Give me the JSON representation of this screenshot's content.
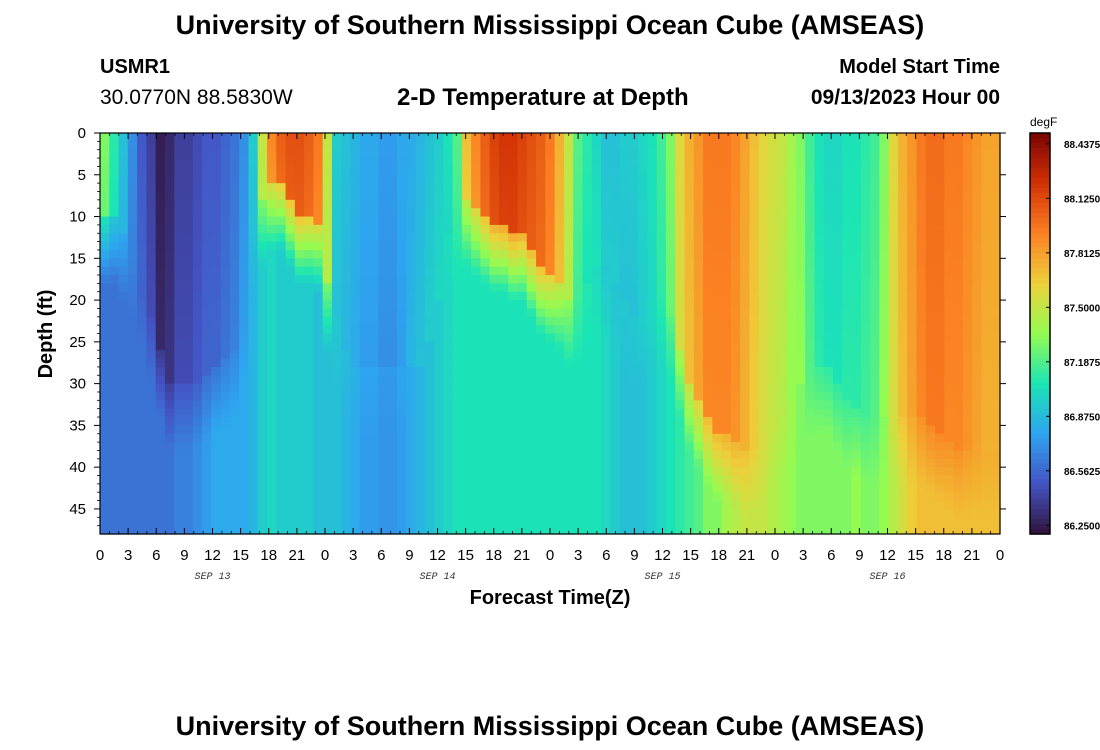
{
  "header": {
    "title": "University of Southern Mississippi Ocean Cube (AMSEAS)",
    "station_id": "USMR1",
    "station_coords": "30.0770N  88.5830W",
    "subtitle": "2-D Temperature at Depth",
    "model_start_label": "Model Start Time",
    "model_start_value": "09/13/2023 Hour 00"
  },
  "footer": {
    "title_repeat": "University of Southern Mississippi Ocean Cube (AMSEAS)"
  },
  "colors": {
    "palette": [
      "#30123b",
      "#4454c4",
      "#2ea4f0",
      "#1be5b5",
      "#95fb51",
      "#edd03a",
      "#fb8022",
      "#d23105",
      "#7a0403"
    ]
  },
  "chart_data": {
    "type": "heatmap",
    "xlabel": "Forecast Time(Z)",
    "ylabel": "Depth (ft)",
    "x_tick_labels": [
      "0",
      "3",
      "6",
      "9",
      "12",
      "15",
      "18",
      "21",
      "0",
      "3",
      "6",
      "9",
      "12",
      "15",
      "18",
      "21",
      "0",
      "3",
      "6",
      "9",
      "12",
      "15",
      "18",
      "21",
      "0",
      "3",
      "6",
      "9",
      "12",
      "15",
      "18",
      "21",
      "0"
    ],
    "x_range_hours": [
      0,
      96
    ],
    "date_labels": [
      {
        "text": "SEP 13",
        "hour": 12
      },
      {
        "text": "SEP 14",
        "hour": 36
      },
      {
        "text": "SEP 15",
        "hour": 60
      },
      {
        "text": "SEP 16",
        "hour": 84
      }
    ],
    "y_ticks": [
      0,
      5,
      10,
      15,
      20,
      25,
      30,
      35,
      40,
      45
    ],
    "y_range_ft": [
      0,
      48
    ],
    "colorbar": {
      "unit": "degF",
      "min": 86.2,
      "max": 88.5,
      "tick_labels": [
        "88.4375",
        "88.1250",
        "87.8125",
        "87.5000",
        "87.1875",
        "86.8750",
        "86.5625",
        "86.2500"
      ],
      "tick_values": [
        88.4375,
        88.125,
        87.8125,
        87.5,
        87.1875,
        86.875,
        86.5625,
        86.25
      ]
    },
    "temperature_degF_by_hour": {
      "hours": [
        0,
        1,
        2,
        3,
        4,
        5,
        6,
        7,
        8,
        9,
        10,
        11,
        12,
        13,
        14,
        15,
        16,
        17,
        18,
        19,
        20,
        21,
        22,
        23,
        24,
        25,
        26,
        27,
        28,
        29,
        30,
        31,
        32,
        33,
        34,
        35,
        36,
        37,
        38,
        39,
        40,
        41,
        42,
        43,
        44,
        45,
        46,
        47,
        48,
        49,
        50,
        51,
        52,
        53,
        54,
        55,
        56,
        57,
        58,
        59,
        60,
        61,
        62,
        63,
        64,
        65,
        66,
        67,
        68,
        69,
        70,
        71,
        72,
        73,
        74,
        75,
        76,
        77,
        78,
        79,
        80,
        81,
        82,
        83,
        84,
        85,
        86,
        87,
        88,
        89,
        90,
        91,
        92,
        93,
        94,
        95,
        96
      ],
      "surface": [
        87.3,
        87.1,
        86.9,
        86.7,
        86.5,
        86.4,
        86.25,
        86.3,
        86.4,
        86.4,
        86.45,
        86.5,
        86.5,
        86.55,
        86.6,
        86.7,
        86.95,
        87.5,
        87.9,
        88.05,
        88.1,
        88.1,
        88.05,
        87.95,
        87.5,
        86.95,
        86.9,
        86.85,
        86.8,
        86.8,
        86.75,
        86.75,
        86.8,
        86.8,
        86.85,
        86.9,
        86.95,
        87.05,
        87.2,
        87.7,
        87.9,
        88.05,
        88.15,
        88.2,
        88.2,
        88.15,
        88.1,
        88.05,
        87.95,
        87.75,
        87.5,
        87.2,
        87.1,
        87.0,
        86.9,
        86.9,
        86.95,
        86.95,
        87.0,
        87.05,
        87.15,
        87.3,
        87.6,
        87.75,
        87.85,
        87.95,
        87.95,
        87.95,
        87.9,
        87.8,
        87.7,
        87.6,
        87.55,
        87.5,
        87.4,
        87.3,
        87.15,
        87.05,
        87.0,
        87.0,
        87.05,
        87.05,
        87.1,
        87.15,
        87.3,
        87.6,
        87.75,
        87.85,
        87.95,
        88.0,
        88.0,
        87.95,
        87.95,
        87.9,
        87.85,
        87.8,
        87.8
      ],
      "bottom": [
        86.6,
        86.6,
        86.6,
        86.6,
        86.6,
        86.6,
        86.6,
        86.6,
        86.65,
        86.65,
        86.7,
        86.75,
        86.8,
        86.8,
        86.8,
        86.8,
        86.85,
        86.95,
        87.0,
        86.95,
        86.95,
        86.95,
        86.95,
        86.9,
        86.9,
        86.9,
        86.85,
        86.8,
        86.75,
        86.75,
        86.72,
        86.72,
        86.75,
        86.8,
        86.85,
        86.9,
        86.95,
        87.0,
        87.05,
        87.05,
        87.05,
        87.05,
        87.05,
        87.05,
        87.05,
        87.05,
        87.05,
        87.05,
        87.05,
        87.05,
        87.05,
        87.05,
        87.05,
        87.05,
        87.0,
        86.95,
        86.9,
        86.9,
        86.9,
        86.95,
        87.0,
        87.05,
        87.1,
        87.15,
        87.2,
        87.3,
        87.3,
        87.4,
        87.45,
        87.5,
        87.5,
        87.5,
        87.45,
        87.4,
        87.35,
        87.3,
        87.3,
        87.3,
        87.3,
        87.3,
        87.3,
        87.35,
        87.3,
        87.3,
        87.35,
        87.45,
        87.55,
        87.65,
        87.7,
        87.7,
        87.7,
        87.7,
        87.7,
        87.7,
        87.7,
        87.7,
        87.7
      ],
      "mixed_layer_depth_ft": [
        10,
        10,
        12,
        14,
        18,
        22,
        26,
        30,
        30,
        30,
        30,
        29,
        28,
        27,
        26,
        22,
        10,
        8,
        6,
        6,
        8,
        10,
        10,
        11,
        18,
        22,
        26,
        28,
        28,
        28,
        28,
        28,
        28,
        28,
        28,
        25,
        20,
        12,
        9,
        8,
        9,
        10,
        11,
        11,
        12,
        12,
        14,
        16,
        17,
        18,
        20,
        20,
        18,
        16,
        16,
        18,
        20,
        22,
        22,
        20,
        20,
        22,
        26,
        30,
        32,
        34,
        36,
        36,
        37,
        38,
        38,
        36,
        34,
        33,
        32,
        30,
        29,
        28,
        28,
        30,
        32,
        33,
        34,
        34,
        34,
        34,
        34,
        34,
        34,
        35,
        36,
        37,
        38,
        38,
        38,
        38,
        38
      ]
    }
  }
}
